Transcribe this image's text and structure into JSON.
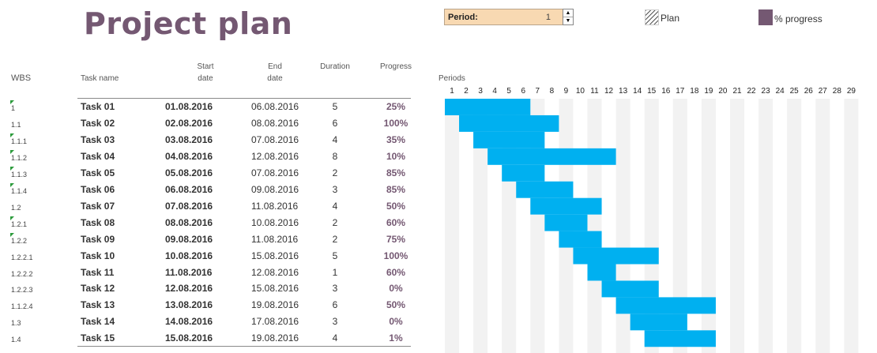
{
  "title": "Project plan",
  "period": {
    "label": "Period:",
    "value": "1"
  },
  "legend": {
    "plan_label": "Plan",
    "progress_label": "% progress"
  },
  "headers": {
    "wbs": "WBS",
    "task": "Task name",
    "start_1": "Start",
    "start_2": "date",
    "end_1": "End",
    "end_2": "date",
    "duration": "Duration",
    "progress": "Progress",
    "periods": "Periods"
  },
  "colors": {
    "title": "#745872",
    "bar": "#00b0f0",
    "stripe": "#f2f2f2",
    "progress": "#745872"
  },
  "periods": [
    1,
    2,
    3,
    4,
    5,
    6,
    7,
    8,
    9,
    10,
    11,
    12,
    13,
    14,
    15,
    16,
    17,
    18,
    19,
    20,
    21,
    22,
    23,
    24,
    25,
    26,
    27,
    28,
    29
  ],
  "tasks": [
    {
      "wbs": "1",
      "name": "Task 01",
      "start": "01.08.2016",
      "end": "06.08.2016",
      "duration": "5",
      "progress": "25%",
      "start_period": 1,
      "span": 6,
      "flag": true
    },
    {
      "wbs": "1.1",
      "name": "Task 02",
      "start": "02.08.2016",
      "end": "08.08.2016",
      "duration": "6",
      "progress": "100%",
      "start_period": 2,
      "span": 7,
      "flag": false
    },
    {
      "wbs": "1.1.1",
      "name": "Task 03",
      "start": "03.08.2016",
      "end": "07.08.2016",
      "duration": "4",
      "progress": "35%",
      "start_period": 3,
      "span": 5,
      "flag": true
    },
    {
      "wbs": "1.1.2",
      "name": "Task 04",
      "start": "04.08.2016",
      "end": "12.08.2016",
      "duration": "8",
      "progress": "10%",
      "start_period": 4,
      "span": 9,
      "flag": true
    },
    {
      "wbs": "1.1.3",
      "name": "Task 05",
      "start": "05.08.2016",
      "end": "07.08.2016",
      "duration": "2",
      "progress": "85%",
      "start_period": 5,
      "span": 3,
      "flag": true
    },
    {
      "wbs": "1.1.4",
      "name": "Task 06",
      "start": "06.08.2016",
      "end": "09.08.2016",
      "duration": "3",
      "progress": "85%",
      "start_period": 6,
      "span": 4,
      "flag": true
    },
    {
      "wbs": "1.2",
      "name": "Task 07",
      "start": "07.08.2016",
      "end": "11.08.2016",
      "duration": "4",
      "progress": "50%",
      "start_period": 7,
      "span": 5,
      "flag": false
    },
    {
      "wbs": "1.2.1",
      "name": "Task 08",
      "start": "08.08.2016",
      "end": "10.08.2016",
      "duration": "2",
      "progress": "60%",
      "start_period": 8,
      "span": 3,
      "flag": true
    },
    {
      "wbs": "1.2.2",
      "name": "Task 09",
      "start": "09.08.2016",
      "end": "11.08.2016",
      "duration": "2",
      "progress": "75%",
      "start_period": 9,
      "span": 3,
      "flag": true
    },
    {
      "wbs": "1.2.2.1",
      "name": "Task 10",
      "start": "10.08.2016",
      "end": "15.08.2016",
      "duration": "5",
      "progress": "100%",
      "start_period": 10,
      "span": 6,
      "flag": false
    },
    {
      "wbs": "1.2.2.2",
      "name": "Task 11",
      "start": "11.08.2016",
      "end": "12.08.2016",
      "duration": "1",
      "progress": "60%",
      "start_period": 11,
      "span": 2,
      "flag": false
    },
    {
      "wbs": "1.2.2.3",
      "name": "Task 12",
      "start": "12.08.2016",
      "end": "15.08.2016",
      "duration": "3",
      "progress": "0%",
      "start_period": 12,
      "span": 4,
      "flag": false
    },
    {
      "wbs": "1.1.2.4",
      "name": "Task 13",
      "start": "13.08.2016",
      "end": "19.08.2016",
      "duration": "6",
      "progress": "50%",
      "start_period": 13,
      "span": 7,
      "flag": false
    },
    {
      "wbs": "1.3",
      "name": "Task 14",
      "start": "14.08.2016",
      "end": "17.08.2016",
      "duration": "3",
      "progress": "0%",
      "start_period": 14,
      "span": 4,
      "flag": false
    },
    {
      "wbs": "1.4",
      "name": "Task 15",
      "start": "15.08.2016",
      "end": "19.08.2016",
      "duration": "4",
      "progress": "1%",
      "start_period": 15,
      "span": 5,
      "flag": false
    }
  ]
}
